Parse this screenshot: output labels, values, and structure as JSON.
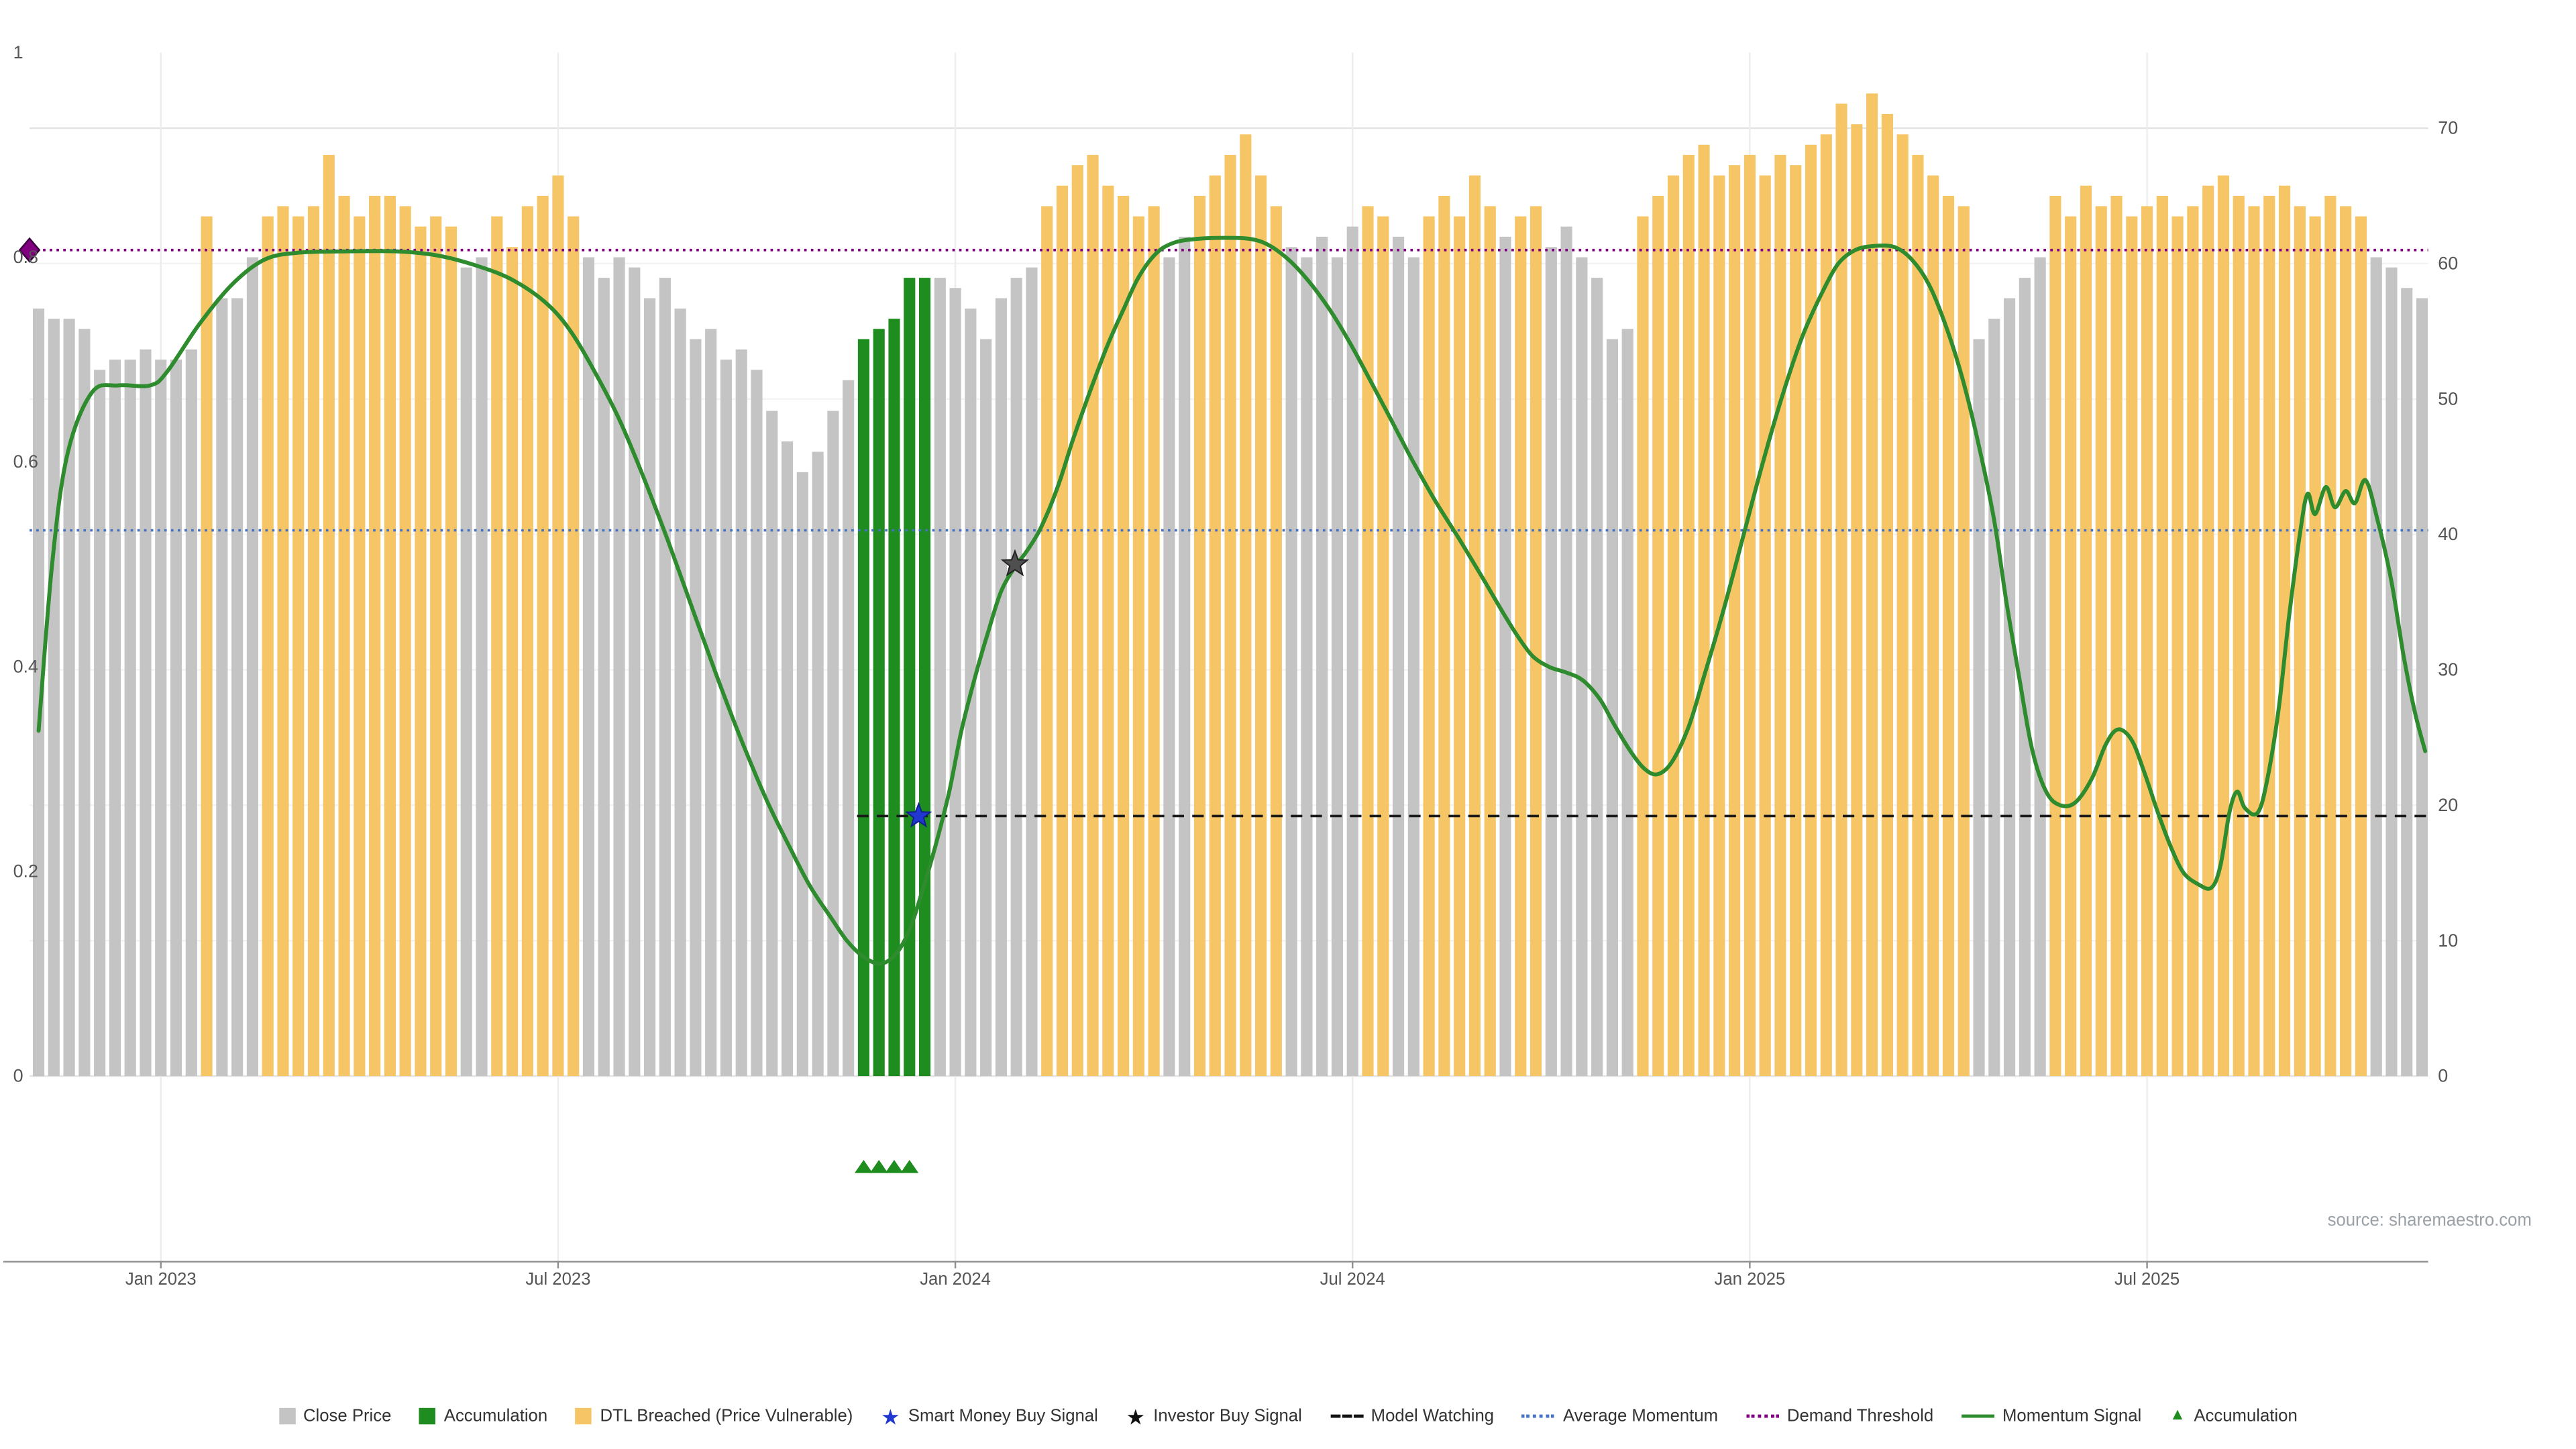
{
  "page": {
    "source_note": "source: sharemaestro.com"
  },
  "chart_data": {
    "type": "bar+line",
    "title": "",
    "left_axis": {
      "range": [
        0,
        1
      ],
      "tick_labels": [
        "1",
        "0.8",
        "0.6",
        "0.4",
        "0.2",
        "0"
      ],
      "tick_values": [
        1,
        0.8,
        0.6,
        0.4,
        0.2,
        0
      ]
    },
    "right_axis": {
      "range": [
        0,
        70
      ],
      "tick_labels": [
        "70",
        "60",
        "50",
        "40",
        "30",
        "20",
        "10",
        "0"
      ],
      "tick_values": [
        70,
        60,
        50,
        40,
        30,
        20,
        10,
        0
      ]
    },
    "x_axis": {
      "ticks": [
        {
          "label": "Jan 2023",
          "index": 8
        },
        {
          "label": "Jul 2023",
          "index": 34
        },
        {
          "label": "Jan 2024",
          "index": 60
        },
        {
          "label": "Jul 2024",
          "index": 86
        },
        {
          "label": "Jan 2025",
          "index": 112
        },
        {
          "label": "Jul 2025",
          "index": 138
        }
      ]
    },
    "bars": {
      "series_name": "Close Price (normalized)",
      "colors": {
        "close": "#c4c4c4",
        "accumulation": "#1e8c1e",
        "dtl_breached": "#f6c566"
      },
      "type_runs": [
        [
          11,
          "c"
        ],
        [
          1,
          "d"
        ],
        [
          3,
          "c"
        ],
        [
          13,
          "d"
        ],
        [
          2,
          "c"
        ],
        [
          6,
          "d"
        ],
        [
          18,
          "c"
        ],
        [
          5,
          "a"
        ],
        [
          7,
          "c"
        ],
        [
          8,
          "d"
        ],
        [
          2,
          "c"
        ],
        [
          6,
          "d"
        ],
        [
          5,
          "c"
        ],
        [
          2,
          "d"
        ],
        [
          2,
          "c"
        ],
        [
          5,
          "d"
        ],
        [
          1,
          "c"
        ],
        [
          2,
          "d"
        ],
        [
          6,
          "c"
        ],
        [
          22,
          "d"
        ],
        [
          5,
          "c"
        ],
        [
          21,
          "d"
        ],
        [
          4,
          "c"
        ]
      ],
      "values": [
        0.75,
        0.74,
        0.74,
        0.73,
        0.69,
        0.7,
        0.7,
        0.71,
        0.7,
        0.7,
        0.71,
        0.84,
        0.76,
        0.76,
        0.8,
        0.84,
        0.85,
        0.84,
        0.85,
        0.9,
        0.86,
        0.84,
        0.86,
        0.86,
        0.85,
        0.83,
        0.84,
        0.83,
        0.79,
        0.8,
        0.84,
        0.81,
        0.85,
        0.86,
        0.88,
        0.84,
        0.8,
        0.78,
        0.8,
        0.79,
        0.76,
        0.78,
        0.75,
        0.72,
        0.73,
        0.7,
        0.71,
        0.69,
        0.65,
        0.62,
        0.59,
        0.61,
        0.65,
        0.68,
        0.72,
        0.73,
        0.74,
        0.78,
        0.78,
        0.78,
        0.77,
        0.75,
        0.72,
        0.76,
        0.78,
        0.79,
        0.85,
        0.87,
        0.89,
        0.9,
        0.87,
        0.86,
        0.84,
        0.85,
        0.8,
        0.82,
        0.86,
        0.88,
        0.9,
        0.92,
        0.88,
        0.85,
        0.81,
        0.8,
        0.82,
        0.8,
        0.83,
        0.85,
        0.84,
        0.82,
        0.8,
        0.84,
        0.86,
        0.84,
        0.88,
        0.85,
        0.82,
        0.84,
        0.85,
        0.81,
        0.83,
        0.8,
        0.78,
        0.72,
        0.73,
        0.84,
        0.86,
        0.88,
        0.9,
        0.91,
        0.88,
        0.89,
        0.9,
        0.88,
        0.9,
        0.89,
        0.91,
        0.92,
        0.95,
        0.93,
        0.96,
        0.94,
        0.92,
        0.9,
        0.88,
        0.86,
        0.85,
        0.72,
        0.74,
        0.76,
        0.78,
        0.8,
        0.86,
        0.84,
        0.87,
        0.85,
        0.86,
        0.84,
        0.85,
        0.86,
        0.84,
        0.85,
        0.87,
        0.88,
        0.86,
        0.85,
        0.86,
        0.87,
        0.85,
        0.84,
        0.86,
        0.85,
        0.84,
        0.8,
        0.79,
        0.77,
        0.76
      ]
    },
    "momentum_line": {
      "name": "Momentum Signal",
      "color": "#2e8b2e",
      "points": [
        [
          0,
          25.5
        ],
        [
          0.9,
          38
        ],
        [
          1.9,
          46
        ],
        [
          3.5,
          50.5
        ],
        [
          5.2,
          51
        ],
        [
          7.3,
          51
        ],
        [
          8.4,
          52
        ],
        [
          10.5,
          55.5
        ],
        [
          12.7,
          58.5
        ],
        [
          14.8,
          60.3
        ],
        [
          17,
          60.8
        ],
        [
          20.2,
          60.9
        ],
        [
          23.4,
          60.9
        ],
        [
          26.1,
          60.6
        ],
        [
          28.8,
          59.8
        ],
        [
          31,
          58.8
        ],
        [
          33.1,
          57.2
        ],
        [
          34.7,
          55.2
        ],
        [
          36.3,
          52.2
        ],
        [
          38,
          48.5
        ],
        [
          39.6,
          44.2
        ],
        [
          41.2,
          39.5
        ],
        [
          42.8,
          34.5
        ],
        [
          44.4,
          29.5
        ],
        [
          46,
          24.8
        ],
        [
          47.6,
          20.5
        ],
        [
          49.2,
          16.8
        ],
        [
          50.5,
          14
        ],
        [
          51.8,
          11.8
        ],
        [
          52.9,
          10
        ],
        [
          54,
          8.8
        ],
        [
          55.1,
          8.3
        ],
        [
          56.1,
          9
        ],
        [
          57,
          10.8
        ],
        [
          57.8,
          13.5
        ],
        [
          58.7,
          17
        ],
        [
          59.6,
          21
        ],
        [
          60.4,
          25.5
        ],
        [
          61.3,
          29.5
        ],
        [
          62.2,
          33
        ],
        [
          63,
          35.8
        ],
        [
          63.9,
          37.6
        ],
        [
          64.7,
          38.8
        ],
        [
          65.6,
          40.5
        ],
        [
          66.7,
          43.5
        ],
        [
          67.7,
          47
        ],
        [
          68.8,
          50.5
        ],
        [
          69.9,
          53.8
        ],
        [
          71,
          56.6
        ],
        [
          72,
          59
        ],
        [
          73.1,
          60.7
        ],
        [
          74.2,
          61.5
        ],
        [
          75.6,
          61.8
        ],
        [
          77.7,
          61.9
        ],
        [
          79.4,
          61.8
        ],
        [
          80.6,
          61.3
        ],
        [
          81.9,
          60.2
        ],
        [
          83.2,
          58.6
        ],
        [
          84.5,
          56.6
        ],
        [
          85.8,
          54.2
        ],
        [
          87.1,
          51.5
        ],
        [
          88.5,
          48.5
        ],
        [
          89.9,
          45.5
        ],
        [
          91.4,
          42.5
        ],
        [
          92.9,
          39.8
        ],
        [
          94.4,
          37
        ],
        [
          95.7,
          34.5
        ],
        [
          96.8,
          32.5
        ],
        [
          97.8,
          31
        ],
        [
          98.9,
          30.2
        ],
        [
          100,
          29.8
        ],
        [
          101.1,
          29.2
        ],
        [
          102.2,
          27.8
        ],
        [
          103.2,
          25.8
        ],
        [
          104.3,
          23.8
        ],
        [
          105.2,
          22.6
        ],
        [
          106,
          22.3
        ],
        [
          106.9,
          23.2
        ],
        [
          108,
          25.8
        ],
        [
          109,
          29.5
        ],
        [
          110.3,
          34.5
        ],
        [
          111.6,
          40
        ],
        [
          112.9,
          45.5
        ],
        [
          114.2,
          50.5
        ],
        [
          115.5,
          54.8
        ],
        [
          116.8,
          58
        ],
        [
          117.8,
          60
        ],
        [
          118.9,
          61
        ],
        [
          120.2,
          61.3
        ],
        [
          121.5,
          61.2
        ],
        [
          122.6,
          60.3
        ],
        [
          123.7,
          58.5
        ],
        [
          124.7,
          55.8
        ],
        [
          125.8,
          52
        ],
        [
          126.9,
          47
        ],
        [
          128,
          41
        ],
        [
          128.8,
          35
        ],
        [
          129.7,
          29
        ],
        [
          130.5,
          24
        ],
        [
          131.4,
          21
        ],
        [
          132.3,
          20
        ],
        [
          133.3,
          20.2
        ],
        [
          134.4,
          22
        ],
        [
          135.3,
          24.5
        ],
        [
          136.1,
          25.6
        ],
        [
          137,
          24.8
        ],
        [
          137.8,
          22.5
        ],
        [
          138.7,
          19.5
        ],
        [
          139.6,
          16.8
        ],
        [
          140.4,
          15
        ],
        [
          141.3,
          14.2
        ],
        [
          142.2,
          13.9
        ],
        [
          142.8,
          15.5
        ],
        [
          143.4,
          19.5
        ],
        [
          143.9,
          21
        ],
        [
          144.4,
          19.8
        ],
        [
          145.2,
          19.4
        ],
        [
          145.8,
          21.5
        ],
        [
          146.6,
          27
        ],
        [
          147.3,
          34
        ],
        [
          148,
          40
        ],
        [
          148.5,
          43
        ],
        [
          149,
          41.5
        ],
        [
          149.7,
          43.5
        ],
        [
          150.3,
          42
        ],
        [
          151,
          43.2
        ],
        [
          151.6,
          42.3
        ],
        [
          152.3,
          44
        ],
        [
          153.1,
          41
        ],
        [
          154,
          36.5
        ],
        [
          154.8,
          31
        ],
        [
          155.5,
          27
        ],
        [
          156.2,
          24
        ]
      ]
    },
    "reference_lines": [
      {
        "name": "Demand Threshold",
        "value": 61,
        "color": "#800080",
        "style": "dotted",
        "start_index": 0
      },
      {
        "name": "Average Momentum",
        "value": 40.3,
        "color": "#4472c4",
        "style": "dotted",
        "start_index": 0
      },
      {
        "name": "Model Watching",
        "value": 19.2,
        "color": "#1a1a1a",
        "style": "dashed",
        "start_index": 54
      }
    ],
    "markers": {
      "demand_diamond": {
        "value": 61,
        "color": "#800080"
      },
      "smart_money_buy_signal": {
        "index": 57.6,
        "value": 19.2,
        "color": "#2038cf"
      },
      "investor_buy_signal": {
        "index": 63.9,
        "value": 37.8,
        "color": "#4f4f4f"
      },
      "accumulation_triangles": {
        "indices": [
          54,
          55,
          56,
          57
        ],
        "color": "#1e8c1e"
      }
    }
  },
  "legend": {
    "items": [
      {
        "type": "square",
        "color": "#c4c4c4",
        "label": "Close Price"
      },
      {
        "type": "square",
        "color": "#1e8c1e",
        "label": "Accumulation"
      },
      {
        "type": "square",
        "color": "#f6c566",
        "label": "DTL Breached (Price Vulnerable)"
      },
      {
        "type": "star",
        "color": "#2038cf",
        "label": "Smart Money Buy Signal"
      },
      {
        "type": "star",
        "color": "#111111",
        "label": "Investor Buy Signal"
      },
      {
        "type": "dashed-line",
        "color": "#111111",
        "label": "Model Watching"
      },
      {
        "type": "dotted-line",
        "color": "#4472c4",
        "label": "Average Momentum"
      },
      {
        "type": "dotted-line",
        "color": "#800080",
        "label": "Demand Threshold"
      },
      {
        "type": "solid-line",
        "color": "#2e8b2e",
        "label": "Momentum Signal"
      },
      {
        "type": "triangle",
        "color": "#1e8c1e",
        "label": "Accumulation"
      }
    ]
  }
}
